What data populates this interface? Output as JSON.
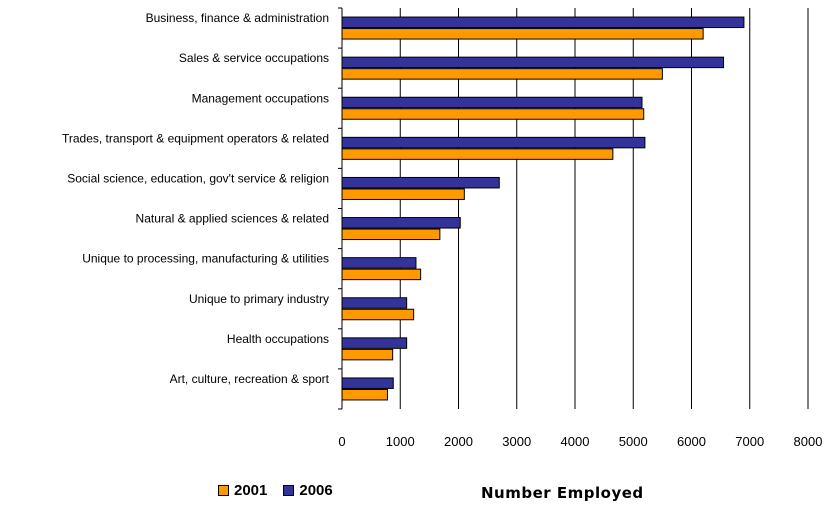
{
  "chart_data": {
    "type": "bar",
    "orientation": "horizontal",
    "categories": [
      "Business, finance & administration",
      "Sales & service occupations",
      "Management occupations",
      "Trades, transport & equipment operators  & related",
      "Social science, education, gov't service & religion",
      "Natural & applied sciences & related",
      "Unique to processing, manufacturing & utilities",
      "Unique to primary industry",
      "Health occupations",
      "Art, culture, recreation & sport"
    ],
    "series": [
      {
        "name": "2006",
        "color": "#333399",
        "values": [
          6900,
          6550,
          5150,
          5200,
          2700,
          2030,
          1270,
          1110,
          1110,
          880
        ]
      },
      {
        "name": "2001",
        "color": "#FF9900",
        "values": [
          6200,
          5500,
          5180,
          4650,
          2100,
          1680,
          1350,
          1230,
          870,
          780
        ]
      }
    ],
    "xlim": [
      0,
      8000
    ],
    "xticks": [
      "0",
      "1000",
      "2000",
      "3000",
      "4000",
      "5000",
      "6000",
      "7000",
      "8000"
    ],
    "xlabel": "Number Employed",
    "ylabel": "",
    "title": "",
    "grid": "vertical",
    "legend": {
      "position": "bottom-left",
      "entries": [
        {
          "name": "2001",
          "color": "#FF9900"
        },
        {
          "name": "2006",
          "color": "#333399"
        }
      ]
    }
  }
}
